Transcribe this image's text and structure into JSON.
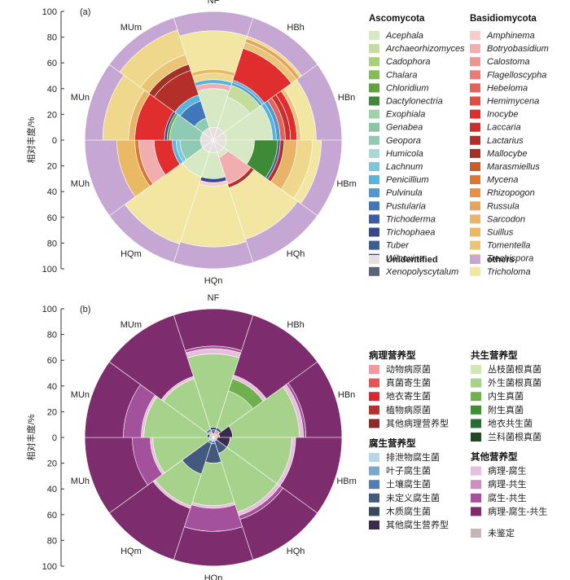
{
  "chart_data": [
    {
      "panel": "(a)",
      "type": "stacked-polar-bar",
      "ylabel": "相对丰度/%",
      "yticks_up": [
        "100",
        "80",
        "60",
        "40",
        "20",
        "0"
      ],
      "yticks_down": [
        "20",
        "40",
        "60",
        "80",
        "100"
      ],
      "categories": [
        "NF",
        "HBh",
        "HBn",
        "HBm",
        "HQh",
        "HQn",
        "HQm",
        "MUh",
        "MUn",
        "MUm"
      ],
      "legend_groups": [
        {
          "heading": "Ascomycota",
          "italic": true,
          "items": [
            {
              "name": "Acephala",
              "color": "#d7e8c4"
            },
            {
              "name": "Archaeorhizomyces",
              "color": "#c4dd9c"
            },
            {
              "name": "Cadophora",
              "color": "#a8d076"
            },
            {
              "name": "Chalara",
              "color": "#84bd57"
            },
            {
              "name": "Chloridium",
              "color": "#5fa43a"
            },
            {
              "name": "Dactylonectria",
              "color": "#3f8a36"
            },
            {
              "name": "Exophiala",
              "color": "#9cd4a8"
            },
            {
              "name": "Genabea",
              "color": "#86c8a4"
            },
            {
              "name": "Geopora",
              "color": "#8fcbb4"
            },
            {
              "name": "Humicola",
              "color": "#a8d8d6"
            },
            {
              "name": "Lachnum",
              "color": "#7cc7dc"
            },
            {
              "name": "Penicillium",
              "color": "#57b4de"
            },
            {
              "name": "Pulvinula",
              "color": "#4f97cf"
            },
            {
              "name": "Pustularia",
              "color": "#3f77b8"
            },
            {
              "name": "Trichoderma",
              "color": "#3a5ea6"
            },
            {
              "name": "Trichophaea",
              "color": "#37478e"
            },
            {
              "name": "Tuber",
              "color": "#3b5f8e"
            },
            {
              "name": "Wilcoxina",
              "color": "#354a6c"
            },
            {
              "name": "Xenopolyscytalum",
              "color": "#5a6478"
            }
          ]
        },
        {
          "heading": "Basidiomycota",
          "italic": true,
          "items": [
            {
              "name": "Amphinema",
              "color": "#f6cccd"
            },
            {
              "name": "Botryobasidium",
              "color": "#f2aeae"
            },
            {
              "name": "Calostoma",
              "color": "#ee9491"
            },
            {
              "name": "Flagelloscypha",
              "color": "#e97c76"
            },
            {
              "name": "Hebeloma",
              "color": "#e4645c"
            },
            {
              "name": "Hemimycena",
              "color": "#df4e45"
            },
            {
              "name": "Inocybe",
              "color": "#e02e2e"
            },
            {
              "name": "Laccaria",
              "color": "#c9302c"
            },
            {
              "name": "Lactarius",
              "color": "#b52f2a"
            },
            {
              "name": "Mallocybe",
              "color": "#a23226"
            },
            {
              "name": "Marasmiellus",
              "color": "#cc5a2a"
            },
            {
              "name": "Mycena",
              "color": "#dd7631"
            },
            {
              "name": "Rhizopogon",
              "color": "#e6904a"
            },
            {
              "name": "Russula",
              "color": "#e6a55c"
            },
            {
              "name": "Sarcodon",
              "color": "#e8b468"
            },
            {
              "name": "Suillus",
              "color": "#eab964"
            },
            {
              "name": "Tomentella",
              "color": "#ebc577"
            },
            {
              "name": "Trechispora",
              "color": "#efd88c"
            },
            {
              "name": "Tricholoma",
              "color": "#f2e6a2"
            }
          ]
        }
      ],
      "legend_extra": [
        {
          "name": "Unidentified",
          "color": "#e6dfdf",
          "bold": true
        },
        {
          "name": "others",
          "color": "#c6a7d3",
          "bold": true
        }
      ],
      "series": [
        {
          "category": "NF",
          "segments": [
            [
              "Unidentified",
              10
            ],
            [
              "Acephala",
              30
            ],
            [
              "Botryobasidium",
              4
            ],
            [
              "Penicillium",
              3
            ],
            [
              "Trechispora",
              5
            ],
            [
              "Suillus",
              3
            ],
            [
              "Tricholoma",
              30
            ],
            [
              "others",
              15
            ]
          ]
        },
        {
          "category": "HBh",
          "segments": [
            [
              "Unidentified",
              10
            ],
            [
              "Acephala",
              25
            ],
            [
              "Archaeorhizomyces",
              10
            ],
            [
              "Pulvinula",
              2
            ],
            [
              "Penicillium",
              2
            ],
            [
              "Inocybe",
              26
            ],
            [
              "Tomentella",
              5
            ],
            [
              "Russula",
              3
            ],
            [
              "Trechispora",
              2
            ],
            [
              "others",
              15
            ]
          ]
        },
        {
          "category": "HBn",
          "segments": [
            [
              "Unidentified",
              10
            ],
            [
              "Acephala",
              36
            ],
            [
              "Penicillium",
              3
            ],
            [
              "Pulvinula",
              3
            ],
            [
              "Hebeloma",
              4
            ],
            [
              "Laccaria",
              4
            ],
            [
              "Inocybe",
              5
            ],
            [
              "Tomentella",
              3
            ],
            [
              "Tricholoma",
              12
            ],
            [
              "others",
              20
            ]
          ]
        },
        {
          "category": "HBm",
          "segments": [
            [
              "Unidentified",
              10
            ],
            [
              "Acephala",
              22
            ],
            [
              "Dactylonectria",
              18
            ],
            [
              "Tuber",
              2
            ],
            [
              "Lactarius",
              3
            ],
            [
              "Sarcodon",
              10
            ],
            [
              "Trechispora",
              12
            ],
            [
              "Tricholoma",
              7
            ],
            [
              "others",
              16
            ]
          ]
        },
        {
          "category": "HQh",
          "segments": [
            [
              "Unidentified",
              10
            ],
            [
              "Acephala",
              4
            ],
            [
              "Botryobasidium",
              22
            ],
            [
              "Lactarius",
              3
            ],
            [
              "Tricholoma",
              42
            ],
            [
              "others",
              19
            ]
          ]
        },
        {
          "category": "HQn",
          "segments": [
            [
              "Unidentified",
              10
            ],
            [
              "Acephala",
              20
            ],
            [
              "Trichophaea",
              3
            ],
            [
              "Amphinema",
              3
            ],
            [
              "Tricholoma",
              47
            ],
            [
              "others",
              17
            ]
          ]
        },
        {
          "category": "HQm",
          "segments": [
            [
              "Unidentified",
              10
            ],
            [
              "Acephala",
              20
            ],
            [
              "Tricholoma",
              55
            ],
            [
              "others",
              15
            ]
          ]
        },
        {
          "category": "MUh",
          "segments": [
            [
              "Unidentified",
              10
            ],
            [
              "Geopora",
              16
            ],
            [
              "Lachnum",
              3
            ],
            [
              "Penicillium",
              3
            ],
            [
              "Inocybe",
              14
            ],
            [
              "Botryobasidium",
              12
            ],
            [
              "Mycena",
              3
            ],
            [
              "Suillus",
              14
            ],
            [
              "others",
              25
            ]
          ]
        },
        {
          "category": "MUn",
          "segments": [
            [
              "Unidentified",
              10
            ],
            [
              "Geopora",
              24
            ],
            [
              "Chloridium",
              2
            ],
            [
              "Trichophaea",
              2
            ],
            [
              "Inocybe",
              23
            ],
            [
              "Sarcodon",
              5
            ],
            [
              "Trechispora",
              20
            ],
            [
              "others",
              14
            ]
          ]
        },
        {
          "category": "MUm",
          "segments": [
            [
              "Unidentified",
              10
            ],
            [
              "Geopora",
              8
            ],
            [
              "Pustularia",
              14
            ],
            [
              "Penicillium",
              5
            ],
            [
              "Lactarius",
              20
            ],
            [
              "Mallocybe",
              5
            ],
            [
              "Tomentella",
              8
            ],
            [
              "Trechispora",
              20
            ],
            [
              "others",
              10
            ]
          ]
        }
      ]
    },
    {
      "panel": "(b)",
      "type": "stacked-polar-bar",
      "ylabel": "相对丰度/%",
      "yticks_up": [
        "100",
        "80",
        "60",
        "40",
        "20",
        "0"
      ],
      "yticks_down": [
        "20",
        "40",
        "60",
        "80",
        "100"
      ],
      "categories": [
        "NF",
        "HBh",
        "HBn",
        "HBm",
        "HQh",
        "HQn",
        "HQm",
        "MUh",
        "MUn",
        "MUm"
      ],
      "legend_groups": [
        {
          "heading": "病理营养型",
          "items": [
            {
              "name": "动物病原菌",
              "color": "#f29b9e"
            },
            {
              "name": "真菌寄生菌",
              "color": "#e85252"
            },
            {
              "name": "地衣寄生菌",
              "color": "#e0262b"
            },
            {
              "name": "植物病原菌",
              "color": "#b8302e"
            },
            {
              "name": "其他病理营养型",
              "color": "#8e2a28"
            }
          ]
        },
        {
          "heading": "共生营养型",
          "items": [
            {
              "name": "丛枝菌根真菌",
              "color": "#d2e7b8"
            },
            {
              "name": "外生菌根真菌",
              "color": "#a7d28b"
            },
            {
              "name": "内生真菌",
              "color": "#6fb04e"
            },
            {
              "name": "附生真菌",
              "color": "#3f8d36"
            },
            {
              "name": "地衣共生菌",
              "color": "#2c6a34"
            },
            {
              "name": "兰科菌根真菌",
              "color": "#1e4a26"
            }
          ]
        },
        {
          "heading": "腐生营养型",
          "items": [
            {
              "name": "排泄物腐生菌",
              "color": "#b6d6ea"
            },
            {
              "name": "叶子腐生菌",
              "color": "#78a8d2"
            },
            {
              "name": "土壤腐生菌",
              "color": "#4d7fb6"
            },
            {
              "name": "未定义腐生菌",
              "color": "#44597e"
            },
            {
              "name": "木质腐生菌",
              "color": "#374863"
            },
            {
              "name": "其他腐生营养型",
              "color": "#3a2a4e"
            }
          ]
        },
        {
          "heading": "其他营养型",
          "items": [
            {
              "name": "病理-腐生",
              "color": "#e7bfdc"
            },
            {
              "name": "病理-共生",
              "color": "#cc8fc2"
            },
            {
              "name": "腐生-共生",
              "color": "#a2519a"
            },
            {
              "name": "病理-腐生-共生",
              "color": "#7d2d6e"
            }
          ]
        }
      ],
      "legend_extra": [
        {
          "name": "未鉴定",
          "color": "#c4b7b5",
          "bold": false
        }
      ],
      "series": [
        {
          "category": "NF",
          "segments": [
            [
              "未鉴定",
              3
            ],
            [
              "土壤腐生菌",
              3
            ],
            [
              "木质腐生菌",
              2
            ],
            [
              "外生菌根真菌",
              57
            ],
            [
              "病理-腐生",
              4
            ],
            [
              "腐生-共生",
              2
            ],
            [
              "病理-腐生-共生",
              29
            ]
          ]
        },
        {
          "category": "HBh",
          "segments": [
            [
              "未鉴定",
              3
            ],
            [
              "动物病原菌",
              3
            ],
            [
              "未定义腐生菌",
              2
            ],
            [
              "外生菌根真菌",
              30
            ],
            [
              "内生真菌",
              10
            ],
            [
              "病理-腐生",
              3
            ],
            [
              "病理-腐生-共生",
              49
            ]
          ]
        },
        {
          "category": "HBn",
          "segments": [
            [
              "未鉴定",
              3
            ],
            [
              "动物病原菌",
              2
            ],
            [
              "其他腐生营养型",
              10
            ],
            [
              "外生菌根真菌",
              52
            ],
            [
              "病理-腐生",
              3
            ],
            [
              "腐生-共生",
              2
            ],
            [
              "病理-腐生-共生",
              28
            ]
          ]
        },
        {
          "category": "HBm",
          "segments": [
            [
              "未鉴定",
              3
            ],
            [
              "其他腐生营养型",
              10
            ],
            [
              "外生菌根真菌",
              48
            ],
            [
              "病理-腐生",
              3
            ],
            [
              "病理-腐生-共生",
              36
            ]
          ]
        },
        {
          "category": "HQh",
          "segments": [
            [
              "未鉴定",
              3
            ],
            [
              "未定义腐生菌",
              10
            ],
            [
              "外生菌根真菌",
              48
            ],
            [
              "病理-腐生",
              3
            ],
            [
              "腐生-共生",
              3
            ],
            [
              "病理-腐生-共生",
              33
            ]
          ]
        },
        {
          "category": "HQn",
          "segments": [
            [
              "未鉴定",
              3
            ],
            [
              "土壤腐生菌",
              2
            ],
            [
              "未定义腐生菌",
              15
            ],
            [
              "外生菌根真菌",
              33
            ],
            [
              "病理-腐生",
              2
            ],
            [
              "腐生-共生",
              18
            ],
            [
              "病理-腐生-共生",
              27
            ]
          ]
        },
        {
          "category": "HQm",
          "segments": [
            [
              "未鉴定",
              3
            ],
            [
              "土壤腐生菌",
              2
            ],
            [
              "未定义腐生菌",
              25
            ],
            [
              "外生菌根真菌",
              26
            ],
            [
              "病理-腐生",
              2
            ],
            [
              "病理-腐生-共生",
              42
            ]
          ]
        },
        {
          "category": "MUh",
          "segments": [
            [
              "未鉴定",
              3
            ],
            [
              "外生菌根真菌",
              44
            ],
            [
              "病理-腐生",
              2
            ],
            [
              "腐生-共生",
              14
            ],
            [
              "病理-腐生-共生",
              37
            ]
          ]
        },
        {
          "category": "MUn",
          "segments": [
            [
              "未鉴定",
              3
            ],
            [
              "木质腐生菌",
              2
            ],
            [
              "外生菌根真菌",
              49
            ],
            [
              "病理-腐生",
              2
            ],
            [
              "腐生-共生",
              14
            ],
            [
              "病理-腐生-共生",
              30
            ]
          ]
        },
        {
          "category": "MUm",
          "segments": [
            [
              "未鉴定",
              3
            ],
            [
              "动物病原菌",
              2
            ],
            [
              "土壤腐生菌",
              2
            ],
            [
              "外生菌根真菌",
              41
            ],
            [
              "病理-腐生",
              2
            ],
            [
              "病理-腐生-共生",
              50
            ]
          ]
        }
      ]
    }
  ]
}
